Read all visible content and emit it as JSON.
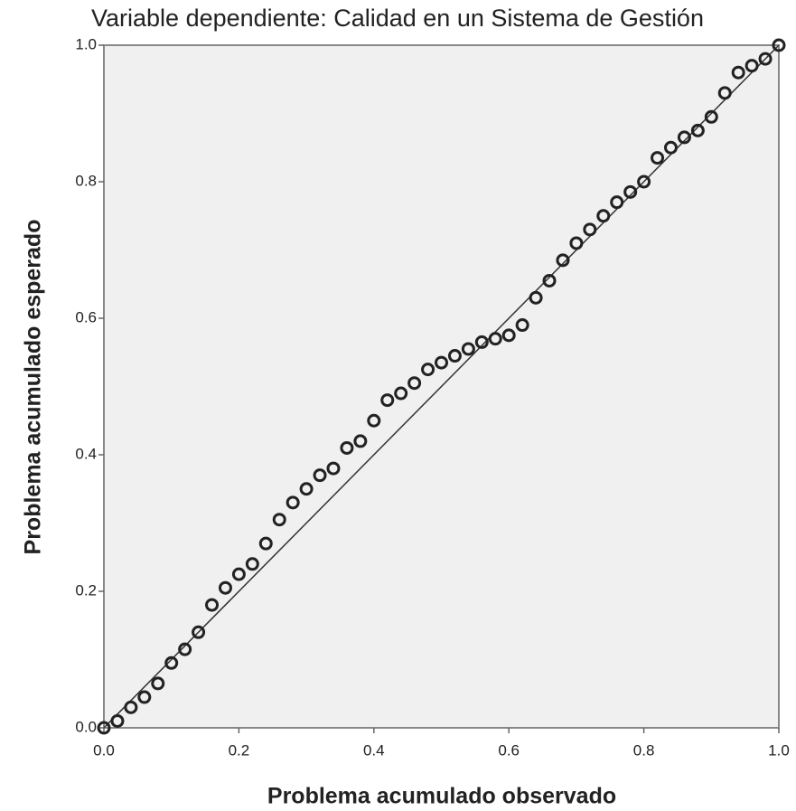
{
  "chart_data": {
    "type": "scatter",
    "title": "Variable dependiente: Calidad en un Sistema de Gestión",
    "xlabel": "Problema acumulado observado",
    "ylabel": "Problema acumulado esperado",
    "x": [
      0,
      0.02,
      0.04,
      0.06,
      0.08,
      0.1,
      0.12,
      0.14,
      0.16,
      0.18,
      0.2,
      0.22,
      0.24,
      0.26,
      0.28,
      0.3,
      0.32,
      0.34,
      0.36,
      0.38,
      0.4,
      0.42,
      0.44,
      0.46,
      0.48,
      0.5,
      0.52,
      0.54,
      0.56,
      0.58,
      0.6,
      0.62,
      0.64,
      0.66,
      0.68,
      0.7,
      0.72,
      0.74,
      0.76,
      0.78,
      0.8,
      0.82,
      0.84,
      0.86,
      0.88,
      0.9,
      0.92,
      0.94,
      0.96,
      0.98,
      1.0
    ],
    "values": [
      0,
      0.01,
      0.03,
      0.045,
      0.065,
      0.095,
      0.115,
      0.14,
      0.18,
      0.205,
      0.225,
      0.24,
      0.27,
      0.305,
      0.33,
      0.35,
      0.37,
      0.38,
      0.41,
      0.42,
      0.45,
      0.48,
      0.49,
      0.505,
      0.525,
      0.535,
      0.545,
      0.555,
      0.565,
      0.57,
      0.575,
      0.59,
      0.63,
      0.655,
      0.685,
      0.71,
      0.73,
      0.75,
      0.77,
      0.785,
      0.8,
      0.835,
      0.85,
      0.865,
      0.875,
      0.895,
      0.93,
      0.96,
      0.97,
      0.98,
      1.0
    ],
    "color": "#222222",
    "xlim": [
      0,
      1
    ],
    "ylim": [
      0,
      1
    ],
    "xticks": [
      {
        "value": 0,
        "label": "0.0"
      },
      0.2,
      0.4,
      0.6,
      0.8,
      {
        "value": 1,
        "label": "1.0"
      }
    ],
    "yticks": [
      {
        "value": 0,
        "label": "0.0"
      },
      0.2,
      0.4,
      0.6,
      0.8,
      {
        "value": 1,
        "label": "1.0"
      }
    ],
    "grid": false
  }
}
